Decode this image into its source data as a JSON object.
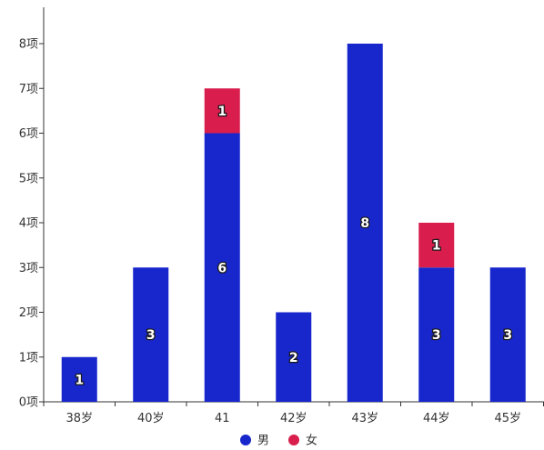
{
  "chart_data": {
    "type": "bar",
    "stacked": true,
    "categories": [
      "38岁",
      "40岁",
      "41",
      "42岁",
      "43岁",
      "44岁",
      "45岁"
    ],
    "series": [
      {
        "name": "男",
        "color": "#1727cc",
        "values": [
          1,
          3,
          6,
          2,
          8,
          3,
          3
        ]
      },
      {
        "name": "女",
        "color": "#d91e4e",
        "values": [
          0,
          0,
          1,
          0,
          0,
          1,
          0
        ]
      }
    ],
    "ylim": [
      0,
      8
    ],
    "y_ticks": [
      "0项",
      "1项",
      "2项",
      "3项",
      "4项",
      "5项",
      "6项",
      "7项",
      "8项"
    ],
    "grid": false,
    "legend_position": "bottom-center",
    "data_labels": true
  }
}
